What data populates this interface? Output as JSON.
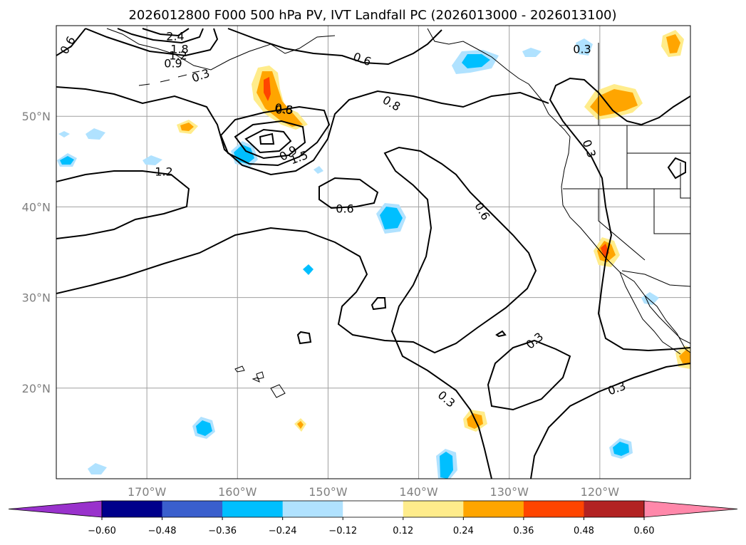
{
  "title": "2026012800 F000 500 hPa PV, IVT Landfall PC (2026013000 - 2026013100)",
  "map": {
    "lon_range": [
      -180,
      -110
    ],
    "lat_range": [
      10,
      60
    ],
    "lon_ticks": [
      {
        "lon": -170,
        "label": "170°W"
      },
      {
        "lon": -160,
        "label": "160°W"
      },
      {
        "lon": -150,
        "label": "150°W"
      },
      {
        "lon": -140,
        "label": "140°W"
      },
      {
        "lon": -130,
        "label": "130°W"
      },
      {
        "lon": -120,
        "label": "120°W"
      }
    ],
    "lat_ticks": [
      {
        "lat": 50,
        "label": "50°N"
      },
      {
        "lat": 40,
        "label": "40°N"
      },
      {
        "lat": 30,
        "label": "30°N"
      },
      {
        "lat": 20,
        "label": "20°N"
      }
    ],
    "grid": true,
    "contour_labels": [
      "2.4",
      "1.8",
      "1.2",
      "0.9",
      "0.6",
      "0.6",
      "0.3",
      "0.8",
      "0.6",
      "0.9",
      "1.5",
      "1.2",
      "0.6",
      "0.6",
      "0.3",
      "0.3",
      "0.3",
      "0.3",
      "0.3",
      "0.3"
    ]
  },
  "colorbar": {
    "ticks": [
      "−0.60",
      "−0.48",
      "−0.36",
      "−0.24",
      "−0.12",
      "0.12",
      "0.24",
      "0.36",
      "0.48",
      "0.60"
    ],
    "colors": [
      "#9932cc",
      "#00008b",
      "#3a5fcd",
      "#00bfff",
      "#b0e2ff",
      "#ffffff",
      "#ffec8b",
      "#ffa500",
      "#ff4500",
      "#b22222",
      "#ff88aa"
    ],
    "extend": "both"
  }
}
